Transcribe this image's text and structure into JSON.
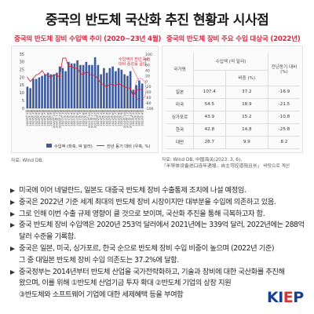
{
  "title": "중국의 반도체 국산화 추진 현황과 시사점",
  "left_chart": {
    "heading": "중국의 반도체 장비 수입액 추이 (2020~23년 4월)",
    "source": "자료: Wind DB.",
    "annotation": "수입액의 전년 동기\n대비 증감률 급감",
    "legend": {
      "bar_label": "수입액 (좌축, 억 달러)",
      "line_label": "전년 동기 대비 (우축, %)"
    },
    "colors": {
      "bar": "#3d5a9e",
      "line": "#d7263d"
    }
  },
  "right_table": {
    "heading": "중국의 반도체 장비 주요 수입 대상국 (2022년)",
    "source_line1": "자료: Wind DB, 中国海关(2023. 3. 6),",
    "source_line2": "「半导体设备进口连年递增，自主可控道阻且长」 바탕으로 계산",
    "headers": {
      "country": "국가명",
      "import_group": "수입액 (억 달러)",
      "import_value": "",
      "share": "비중 (%)",
      "yoy": "전년동기 대비 (%)"
    },
    "rows": [
      {
        "country": "일본",
        "value": "107.4",
        "share": "37.2",
        "yoy": "-16.9"
      },
      {
        "country": "미국",
        "value": "54.5",
        "share": "18.9",
        "yoy": "-21.5"
      },
      {
        "country": "싱가포르",
        "value": "43.9",
        "share": "15.2",
        "yoy": "-10.8"
      },
      {
        "country": "한국",
        "value": "42.8",
        "share": "14.8",
        "yoy": "-25.8"
      },
      {
        "country": "대만",
        "value": "28.7",
        "share": "9.9",
        "yoy": "8.2"
      }
    ]
  },
  "bullets": [
    {
      "lines": [
        "미국에 이어 네덜란드, 일본도 대중국 반도체 장비 수출통제 조치에 나설 예정임."
      ]
    },
    {
      "lines": [
        "중국은 2022년 기준 세계 최대의 반도체 장비 시장이지만 대부분을 수입에 의존하고 있음."
      ]
    },
    {
      "lines": [
        "그로 인해 이번 수출 규제 영향이 클 것으로 보이며, 국산화 추진을 통해 극복하고자 함."
      ]
    },
    {
      "lines": [
        "중국 반도체 장비 수입액은 2020년 253억 달러에서 2021년에는 339억 달러, 2022년에는 288억",
        "달러 수준을 기록함."
      ]
    },
    {
      "lines": [
        "중국은 일본, 미국, 싱가포르, 한국 순으로 반도체 장비 수입 비중이 높으며 (2022년 기준)",
        "그 중 대일본 반도체 장비 수입 의존도는 37.2%에 달함."
      ]
    },
    {
      "lines": [
        "중국정부는 2014년부터 반도체 산업을 국가전략화하고, 기술과 장비에 대한 국산화를 추진해",
        "왔으며, 이를 위해 ①반도체 산업기금 투자 확대 ②반도체 기업의 상장 지원",
        "③반도체와 소프트웨어 기업에 대한 세제혜택 등을 부여함"
      ]
    }
  ],
  "logo": {
    "main": "KI",
    "accent": "E",
    "tail": "P"
  },
  "chart_data": {
    "type": "bar",
    "title": "중국의 반도체 장비 수입액 추이 (2020~23년 4월)",
    "xlabel": "",
    "ylabel": "",
    "categories": [
      "2020년 1월",
      "2020년 2월",
      "2020년 3월",
      "2020년 4월",
      "2020년 5월",
      "2020년 6월",
      "2020년 7월",
      "2020년 8월",
      "2020년 9월",
      "2020년 10월",
      "2020년 11월",
      "2020년 12월",
      "2021년 1월",
      "2021년 2월",
      "2021년 3월",
      "2021년 4월",
      "2021년 5월",
      "2021년 6월",
      "2021년 7월",
      "2021년 8월",
      "2021년 9월",
      "2021년 10월",
      "2021년 11월",
      "2021년 12월",
      "2022년 1월",
      "2022년 2월",
      "2022년 3월",
      "2022년 4월",
      "2022년 5월",
      "2022년 6월",
      "2022년 7월",
      "2022년 8월",
      "2022년 9월",
      "2022년 10월",
      "2022년 11월",
      "2022년 12월",
      "2023년 1월",
      "2023년 2월",
      "2023년 3월",
      "2023년 4월"
    ],
    "series": [
      {
        "name": "수입액 (좌축, 억 달러)",
        "axis": "left",
        "values": [
          14,
          13,
          19,
          19,
          20,
          21,
          22,
          23,
          22,
          22,
          23,
          27,
          26,
          24,
          30,
          29,
          29,
          31,
          28,
          28,
          30,
          28,
          28,
          33,
          28,
          22,
          26,
          23,
          26,
          27,
          24,
          26,
          25,
          22,
          21,
          24,
          12,
          15,
          18,
          16
        ]
      },
      {
        "name": "전년 동기 대비 (우축, %)",
        "axis": "right",
        "values": [
          14,
          -1,
          11,
          23,
          28,
          39,
          24,
          23,
          14,
          25,
          22,
          15,
          85,
          86,
          54,
          56,
          47,
          49,
          28,
          24,
          37,
          27,
          22,
          22,
          8,
          -8,
          -13,
          -21,
          -10,
          -13,
          -16,
          -8,
          -15,
          -20,
          -24,
          -26,
          -57,
          -31,
          -31,
          -30
        ]
      }
    ],
    "ylim_left": [
      0,
      35
    ],
    "yticks_left": [
      0,
      5,
      10,
      15,
      20,
      25,
      30,
      35
    ],
    "ylim_right": [
      -100,
      100
    ],
    "yticks_right": [
      -100,
      -80,
      -60,
      -40,
      -20,
      0,
      20,
      40,
      60,
      80,
      100
    ],
    "grid": false,
    "legend": "bottom"
  }
}
